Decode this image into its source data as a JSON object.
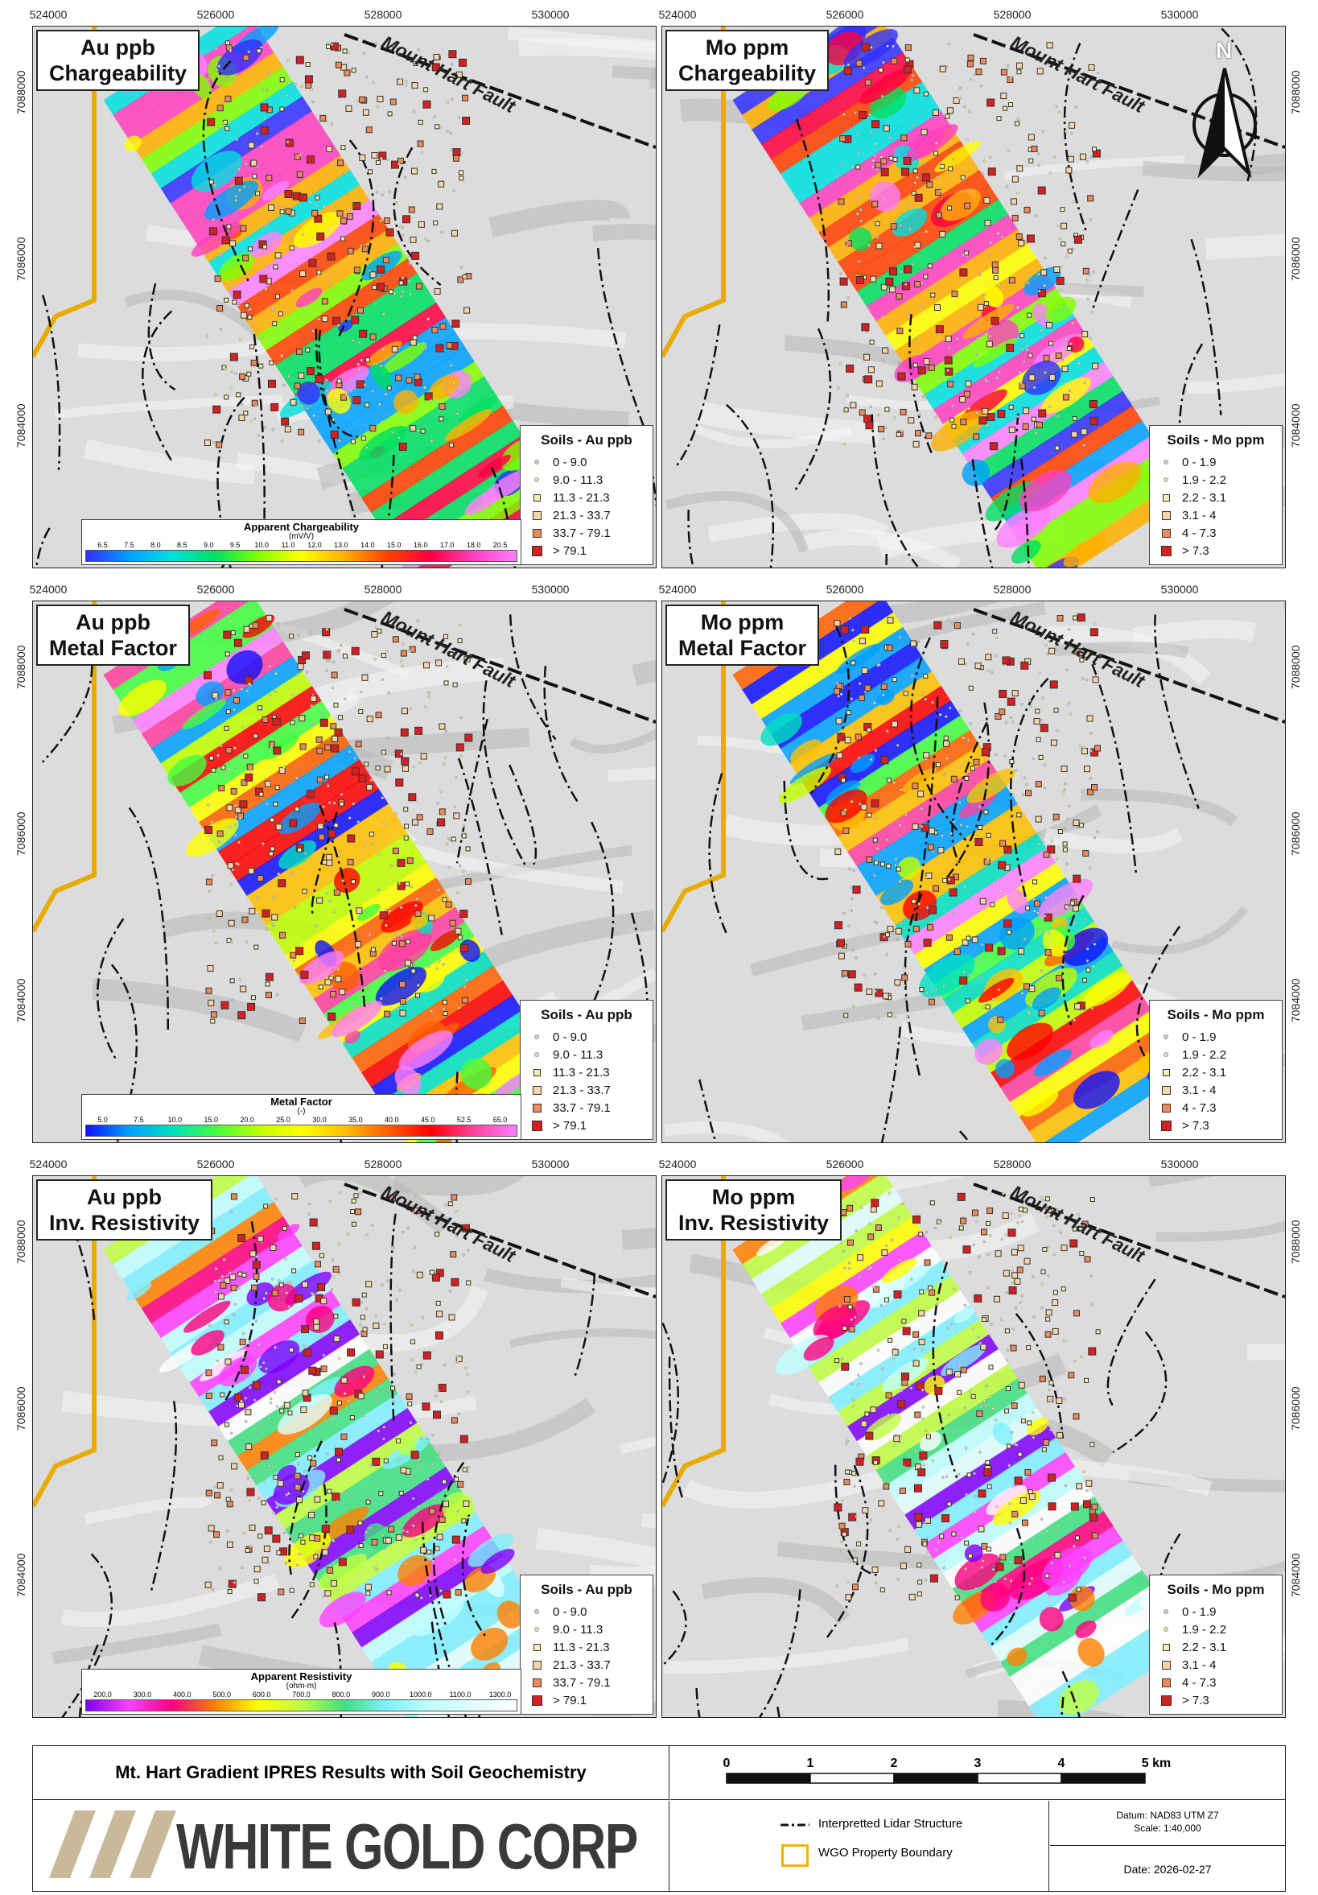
{
  "panels": [
    {
      "id": "p1",
      "title_line1": "Au ppb",
      "title_line2": "Chargeability",
      "legend_title": "Soils - Au ppb",
      "legend_type": "au",
      "colorbar": "charge"
    },
    {
      "id": "p2",
      "title_line1": "Mo ppm",
      "title_line2": "Chargeability",
      "legend_title": "Soils - Mo ppm",
      "legend_type": "mo",
      "colorbar": ""
    },
    {
      "id": "p3",
      "title_line1": "Au ppb",
      "title_line2": "Metal Factor",
      "legend_title": "Soils - Au ppb",
      "legend_type": "au",
      "colorbar": "metal"
    },
    {
      "id": "p4",
      "title_line1": "Mo ppm",
      "title_line2": "Metal Factor",
      "legend_title": "Soils - Mo ppm",
      "legend_type": "mo",
      "colorbar": ""
    },
    {
      "id": "p5",
      "title_line1": "Au ppb",
      "title_line2": "Inv. Resistivity",
      "legend_title": "Soils - Au ppb",
      "legend_type": "au",
      "colorbar": "resist"
    },
    {
      "id": "p6",
      "title_line1": "Mo ppm",
      "title_line2": "Inv. Resistivity",
      "legend_title": "Soils - Mo ppm",
      "legend_type": "mo",
      "colorbar": ""
    }
  ],
  "fault_label": "Mount Hart Fault",
  "north_label": "N",
  "x_ticks": [
    "524000",
    "526000",
    "528000",
    "530000"
  ],
  "y_ticks": [
    "7088000",
    "7086000",
    "7084000"
  ],
  "legend_au": [
    "0 - 9.0",
    "9.0 - 11.3",
    "11.3 - 21.3",
    "21.3 - 33.7",
    "33.7 - 79.1",
    "> 79.1"
  ],
  "legend_mo": [
    "0 - 1.9",
    "1.9 - 2.2",
    "2.2 - 3.1",
    "3.1 - 4",
    "4 - 7.3",
    "> 7.3"
  ],
  "legend_colors": [
    "#cfcfcf",
    "#e4e6a0",
    "#f6f0b0",
    "#f6d6a8",
    "#ec8a5a",
    "#d42020"
  ],
  "colorbars": {
    "charge": {
      "title": "Apparent Chargeability",
      "unit": "(mV/V)",
      "ticks": [
        "6.5",
        "7.5",
        "8.0",
        "8.5",
        "9.0",
        "9.5",
        "10.0",
        "11.0",
        "12.0",
        "13.0",
        "14.0",
        "15.0",
        "16.0",
        "17.0",
        "18.0",
        "20.5"
      ],
      "colors": [
        "#3030ff",
        "#00a0ff",
        "#00e0e0",
        "#00e060",
        "#80ff00",
        "#ffff00",
        "#ffb000",
        "#ff4000",
        "#ff0040",
        "#ff40c0",
        "#ff80ff"
      ]
    },
    "metal": {
      "title": "Metal Factor",
      "unit": "(-)",
      "ticks": [
        "5.0",
        "7.5",
        "10.0",
        "15.0",
        "20.0",
        "25.0",
        "30.0",
        "35.0",
        "40.0",
        "45.0",
        "52.5",
        "65.0"
      ],
      "colors": [
        "#1010ff",
        "#00a0ff",
        "#00e0c0",
        "#40ff40",
        "#c0ff00",
        "#ffff00",
        "#ffc000",
        "#ff6000",
        "#ff0000",
        "#ff40a0",
        "#ff80ff"
      ]
    },
    "resist": {
      "title": "Apparent Resistivity",
      "unit": "(ohm-m)",
      "ticks": [
        "200.0",
        "300.0",
        "400.0",
        "500.0",
        "600.0",
        "700.0",
        "800.0",
        "900.0",
        "1000.0",
        "1100.0",
        "1300.0"
      ],
      "colors": [
        "#8000ff",
        "#ff40ff",
        "#ff0080",
        "#ff8000",
        "#ffff00",
        "#c0ff40",
        "#40e080",
        "#80f0ff",
        "#c0ffff",
        "#e0ffff",
        "#ffffff"
      ]
    }
  },
  "footer": {
    "title": "Mt. Hart Gradient IPRES Results with Soil Geochemistry",
    "logo": "WHITE GOLD CORP",
    "scale_ticks": [
      "0",
      "1",
      "2",
      "3",
      "4",
      "5 km"
    ],
    "legend_structure": "Interpretted Lidar Structure",
    "legend_boundary": "WGO Property Boundary",
    "datum": "Datum: NAD83 UTM Z7",
    "scale": "Scale: 1:40,000",
    "date": "Date: 2026-02-27"
  }
}
